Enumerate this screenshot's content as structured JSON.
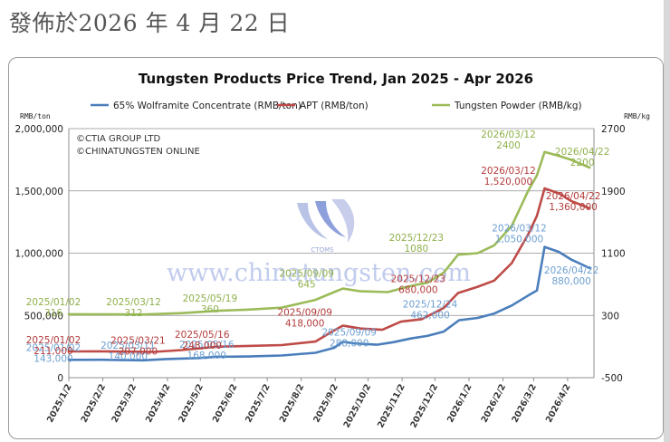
{
  "publish_date": "發佈於2026 年 4 月 22 日",
  "chart_data": {
    "type": "line",
    "title": "Tungsten Products Price Trend, Jan 2025 - Apr 2026",
    "left_unit": "RMB/ton",
    "right_unit": "RMB/kg",
    "copyright": [
      "©CTIA GROUP LTD",
      "©CHINATUNGSTEN ONLINE"
    ],
    "watermark_text": "www.chinatungsten.com",
    "logo_text": "CTOMS",
    "x_tick_labels": [
      "2025/1/2",
      "2025/2/2",
      "2025/3/2",
      "2025/4/2",
      "2025/5/2",
      "2025/6/2",
      "2025/7/2",
      "2025/8/2",
      "2025/9/2",
      "2025/10/2",
      "2025/11/2",
      "2025/12/2",
      "2026/1/2",
      "2026/2/2",
      "2026/3/2",
      "2026/4/2"
    ],
    "left_axis": {
      "min": 0,
      "max": 2000000,
      "ticks": [
        0,
        500000,
        1000000,
        1500000,
        2000000
      ],
      "tick_labels": [
        "0",
        "500,000",
        "1,000,000",
        "1,500,000",
        "2,000,000"
      ]
    },
    "right_axis": {
      "min": -500,
      "max": 2700,
      "ticks": [
        -500,
        300,
        1100,
        1900,
        2700
      ],
      "tick_labels": [
        "-500",
        "300",
        "1100",
        "1900",
        "2700"
      ]
    },
    "grid": true,
    "legend_position": "top",
    "series": [
      {
        "name": "65% Wolframite Concentrate (RMB/ton)",
        "axis": "left",
        "color": "#4a7ebb",
        "points": [
          [
            "2025/01/02",
            143000
          ],
          [
            "2025/02/01",
            144000
          ],
          [
            "2025/03/11",
            140000
          ],
          [
            "2025/04/01",
            150000
          ],
          [
            "2025/05/01",
            158000
          ],
          [
            "2025/05/16",
            168000
          ],
          [
            "2025/06/15",
            170000
          ],
          [
            "2025/07/15",
            178000
          ],
          [
            "2025/08/15",
            200000
          ],
          [
            "2025/09/01",
            240000
          ],
          [
            "2025/09/09",
            288000
          ],
          [
            "2025/09/20",
            275000
          ],
          [
            "2025/10/10",
            265000
          ],
          [
            "2025/10/25",
            285000
          ],
          [
            "2025/11/10",
            315000
          ],
          [
            "2025/11/25",
            335000
          ],
          [
            "2025/12/10",
            370000
          ],
          [
            "2025/12/24",
            462000
          ],
          [
            "2026/01/10",
            480000
          ],
          [
            "2026/01/25",
            515000
          ],
          [
            "2026/02/10",
            580000
          ],
          [
            "2026/02/25",
            660000
          ],
          [
            "2026/03/05",
            700000
          ],
          [
            "2026/03/12",
            1050000
          ],
          [
            "2026/03/25",
            1010000
          ],
          [
            "2026/04/05",
            950000
          ],
          [
            "2026/04/22",
            880000
          ]
        ],
        "labels": [
          {
            "date": "2025/01/02",
            "text": "2025/01/02",
            "value": "143,000"
          },
          {
            "date": "2025/03/11",
            "text": "2025/03/11",
            "value": "140,000"
          },
          {
            "date": "2025/05/16",
            "text": "2025/05/16",
            "value": "168,000"
          },
          {
            "date": "2025/09/09",
            "text": "2025/09/09",
            "value": "288,000"
          },
          {
            "date": "2025/12/24",
            "text": "2025/12/24",
            "value": "462,000"
          },
          {
            "date": "2026/03/12",
            "text": "2026/03/12",
            "value": "1,050,000"
          },
          {
            "date": "2026/04/22",
            "text": "2026/04/22",
            "value": "880,000"
          }
        ]
      },
      {
        "name": "APT (RMB/ton)",
        "axis": "left",
        "color": "#be4b48",
        "points": [
          [
            "2025/01/02",
            211000
          ],
          [
            "2025/02/01",
            212000
          ],
          [
            "2025/03/21",
            207000
          ],
          [
            "2025/04/15",
            222000
          ],
          [
            "2025/05/16",
            248000
          ],
          [
            "2025/06/15",
            255000
          ],
          [
            "2025/07/15",
            262000
          ],
          [
            "2025/08/15",
            290000
          ],
          [
            "2025/09/01",
            380000
          ],
          [
            "2025/09/09",
            418000
          ],
          [
            "2025/09/25",
            395000
          ],
          [
            "2025/10/15",
            385000
          ],
          [
            "2025/11/01",
            450000
          ],
          [
            "2025/11/20",
            470000
          ],
          [
            "2025/12/10",
            560000
          ],
          [
            "2025/12/23",
            680000
          ],
          [
            "2026/01/10",
            730000
          ],
          [
            "2026/01/25",
            780000
          ],
          [
            "2026/02/10",
            920000
          ],
          [
            "2026/02/25",
            1150000
          ],
          [
            "2026/03/05",
            1300000
          ],
          [
            "2026/03/12",
            1520000
          ],
          [
            "2026/03/25",
            1480000
          ],
          [
            "2026/04/05",
            1420000
          ],
          [
            "2026/04/22",
            1360000
          ]
        ],
        "labels": [
          {
            "date": "2025/01/02",
            "text": "2025/01/02",
            "value": "211,000"
          },
          {
            "date": "2025/03/21",
            "text": "2025/03/21",
            "value": "207,000"
          },
          {
            "date": "2025/05/16",
            "text": "2025/05/16",
            "value": "248,000"
          },
          {
            "date": "2025/09/09",
            "text": "2025/09/09",
            "value": "418,000"
          },
          {
            "date": "2025/12/23",
            "text": "2025/12/23",
            "value": "680,000"
          },
          {
            "date": "2026/03/12",
            "text": "2026/03/12",
            "value": "1,520,000"
          },
          {
            "date": "2026/04/22",
            "text": "2026/04/22",
            "value": "1,360,000"
          }
        ]
      },
      {
        "name": "Tungsten Powder (RMB/kg)",
        "axis": "right",
        "color": "#9bbb59",
        "points": [
          [
            "2025/01/02",
            316
          ],
          [
            "2025/02/01",
            314
          ],
          [
            "2025/03/12",
            312
          ],
          [
            "2025/04/15",
            330
          ],
          [
            "2025/05/19",
            360
          ],
          [
            "2025/06/15",
            375
          ],
          [
            "2025/07/15",
            400
          ],
          [
            "2025/08/15",
            500
          ],
          [
            "2025/09/01",
            600
          ],
          [
            "2025/09/09",
            645
          ],
          [
            "2025/09/25",
            610
          ],
          [
            "2025/10/20",
            600
          ],
          [
            "2025/11/10",
            680
          ],
          [
            "2025/11/25",
            720
          ],
          [
            "2025/12/10",
            850
          ],
          [
            "2025/12/23",
            1080
          ],
          [
            "2026/01/10",
            1100
          ],
          [
            "2026/01/25",
            1200
          ],
          [
            "2026/02/10",
            1450
          ],
          [
            "2026/02/25",
            1900
          ],
          [
            "2026/03/05",
            2100
          ],
          [
            "2026/03/12",
            2400
          ],
          [
            "2026/03/25",
            2350
          ],
          [
            "2026/04/05",
            2300
          ],
          [
            "2026/04/22",
            2200
          ]
        ],
        "labels": [
          {
            "date": "2025/01/02",
            "text": "2025/01/02",
            "value": "316"
          },
          {
            "date": "2025/03/12",
            "text": "2025/03/12",
            "value": "312"
          },
          {
            "date": "2025/05/19",
            "text": "2025/05/19",
            "value": "360"
          },
          {
            "date": "2025/09/09",
            "text": "2025/09/09",
            "value": "645"
          },
          {
            "date": "2025/12/23",
            "text": "2025/12/23",
            "value": "1080"
          },
          {
            "date": "2026/03/12",
            "text": "2026/03/12",
            "value": "2400"
          },
          {
            "date": "2026/04/22",
            "text": "2026/04/22",
            "value": "2200"
          }
        ]
      }
    ]
  }
}
